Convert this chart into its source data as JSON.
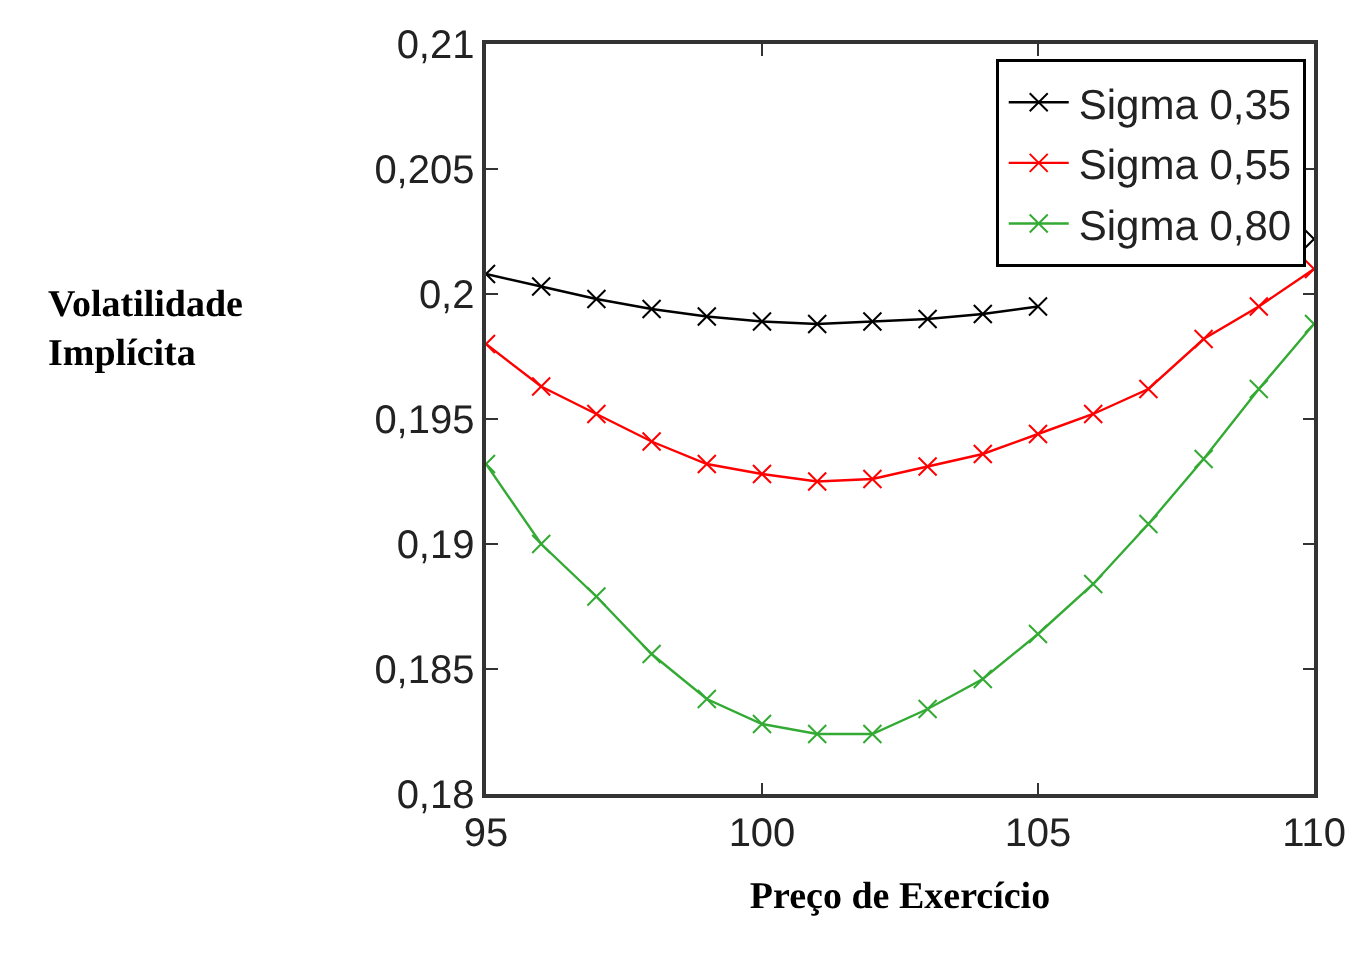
{
  "chart_data": {
    "type": "line",
    "xlabel": "Preço de Exercício",
    "ylabel": "Volatilidade Implícita",
    "x": [
      95,
      96,
      97,
      98,
      99,
      100,
      101,
      102,
      103,
      104,
      105,
      106,
      107,
      108,
      109,
      110
    ],
    "series": [
      {
        "name": "Sigma 0,35",
        "color": "#000000",
        "values": [
          0.2008,
          0.2003,
          0.1998,
          0.1994,
          0.1991,
          0.1989,
          0.1988,
          0.1989,
          0.199,
          0.1992,
          0.1995,
          null,
          null,
          null,
          null,
          0.2022
        ]
      },
      {
        "name": "Sigma 0,55",
        "color": "#ff0000",
        "values": [
          0.198,
          0.1963,
          0.1952,
          0.1941,
          0.1932,
          0.1928,
          0.1925,
          0.1926,
          0.1931,
          0.1936,
          0.1944,
          0.1952,
          0.1962,
          0.1982,
          0.1995,
          0.201
        ]
      },
      {
        "name": "Sigma 0,80",
        "color": "#33aa33",
        "values": [
          0.1932,
          0.19,
          0.1879,
          0.1856,
          0.1838,
          0.1828,
          0.1824,
          0.1824,
          0.1834,
          0.1846,
          0.1864,
          0.1884,
          0.1908,
          0.1934,
          0.1962,
          0.1988
        ]
      }
    ],
    "xlim": [
      95,
      110
    ],
    "xticks": [
      95,
      100,
      105,
      110
    ],
    "ylim": [
      0.18,
      0.21
    ],
    "yticks": [
      {
        "value": 0.18,
        "label": "0,18"
      },
      {
        "value": 0.185,
        "label": "0,185"
      },
      {
        "value": 0.19,
        "label": "0,19"
      },
      {
        "value": 0.195,
        "label": "0,195"
      },
      {
        "value": 0.2,
        "label": "0,2"
      },
      {
        "value": 0.205,
        "label": "0,205"
      },
      {
        "value": 0.21,
        "label": "0,21"
      }
    ],
    "grid": false,
    "legend": "top right",
    "marker": "cross",
    "line_style": "solid"
  }
}
